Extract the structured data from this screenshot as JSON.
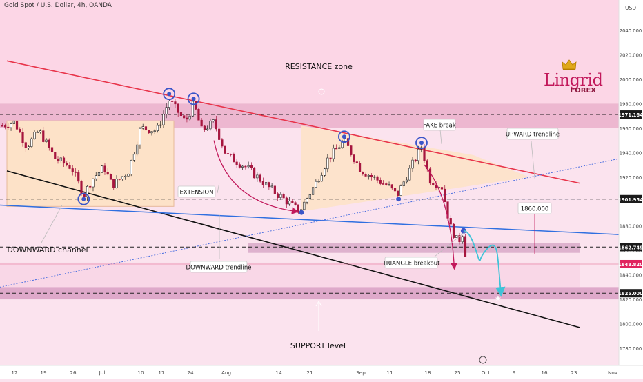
{
  "header": {
    "symbol_line": "Gold Spot / U.S. Dollar, 4h, OANDA"
  },
  "logo": {
    "name": "Lingrid",
    "sub": "FOREX",
    "icon": "crown-icon"
  },
  "colors": {
    "background": "#fbe3ee",
    "resistance_line": "#e8344a",
    "channel_line": "#111111",
    "downward_trendline": "#2f6fe0",
    "upward_trendline": "#4a6ee0",
    "candle_up": "#1f1f1f",
    "candle_down": "#a6163f",
    "projection": "#3fc3d8",
    "accent_marker": "#3a55c9",
    "price_label_red": "#e0245e"
  },
  "chart_data": {
    "type": "candlestick",
    "title": "Gold Spot / U.S. Dollar, 4h, OANDA",
    "currency": "USD",
    "ylim": [
      1770,
      2050
    ],
    "y_ticks": [
      1780,
      1800,
      1820,
      1840,
      1860,
      1880,
      1900,
      1920,
      1940,
      1960,
      1980,
      2000,
      2020,
      2040
    ],
    "y_tick_labels": [
      "1780.000",
      "1800.000",
      "1820.000",
      "1840.000",
      "1860.000",
      "1880.000",
      "1900.000",
      "1920.000",
      "1940.000",
      "1960.000",
      "1980.000",
      "2000.000",
      "2020.000",
      "2040.000"
    ],
    "x_ticks": [
      "12",
      "19",
      "26",
      "Jul",
      "10",
      "17",
      "24",
      "Aug",
      "14",
      "21",
      "Sep",
      "11",
      "18",
      "25",
      "Oct",
      "9",
      "16",
      "23",
      "Nov"
    ],
    "price_path": [
      [
        "Jun 9",
        1962
      ],
      [
        "Jun 12",
        1965
      ],
      [
        "Jun 15",
        1945
      ],
      [
        "Jun 18",
        1958
      ],
      [
        "Jun 22",
        1935
      ],
      [
        "Jun 26",
        1928
      ],
      [
        "Jun 29",
        1905
      ],
      [
        "Jul 1",
        1918
      ],
      [
        "Jul 4",
        1928
      ],
      [
        "Jul 6",
        1913
      ],
      [
        "Jul 10",
        1925
      ],
      [
        "Jul 13",
        1960
      ],
      [
        "Jul 17",
        1958
      ],
      [
        "Jul 20",
        1983
      ],
      [
        "Jul 24",
        1965
      ],
      [
        "Jul 26",
        1980
      ],
      [
        "Jul 28",
        1958
      ],
      [
        "Jul 31",
        1965
      ],
      [
        "Aug 3",
        1938
      ],
      [
        "Aug 8",
        1928
      ],
      [
        "Aug 14",
        1910
      ],
      [
        "Aug 18",
        1900
      ],
      [
        "Aug 21",
        1892
      ],
      [
        "Aug 25",
        1915
      ],
      [
        "Aug 28",
        1935
      ],
      [
        "Sep 1",
        1950
      ],
      [
        "Sep 5",
        1926
      ],
      [
        "Sep 8",
        1920
      ],
      [
        "Sep 12",
        1912
      ],
      [
        "Sep 14",
        1905
      ],
      [
        "Sep 18",
        1932
      ],
      [
        "Sep 20",
        1945
      ],
      [
        "Sep 22",
        1918
      ],
      [
        "Sep 25",
        1912
      ],
      [
        "Sep 27",
        1880
      ],
      [
        "Sep 29",
        1866
      ],
      [
        "Sep 30",
        1875
      ],
      [
        "Oct 1",
        1852
      ]
    ],
    "price_labels": [
      {
        "text": "1971.164",
        "value": 1971.164,
        "style": "dark"
      },
      {
        "text": "1901.954",
        "value": 1901.954,
        "style": "dark"
      },
      {
        "text": "1862.749",
        "value": 1862.749,
        "style": "dark"
      },
      {
        "text": "1848.820",
        "value": 1848.82,
        "style": "red"
      },
      {
        "text": "1825.000",
        "value": 1825.0,
        "style": "dark"
      }
    ],
    "horizontal_levels": [
      1971.164,
      1901.954,
      1862.749,
      1825.0
    ],
    "annotations": {
      "resistance_zone": "RESISTANCE zone",
      "support_level": "SUPPORT level",
      "downward_channel": "DOWNWARD channel",
      "extension": "EXTENSION",
      "downward_trendline": "DOWNWARD trendline",
      "upward_trendline": "UPWARD trendline",
      "fake_break": "FAKE break",
      "triangle_breakout": "TRIANGLE breakout",
      "target": "1860.000"
    }
  }
}
